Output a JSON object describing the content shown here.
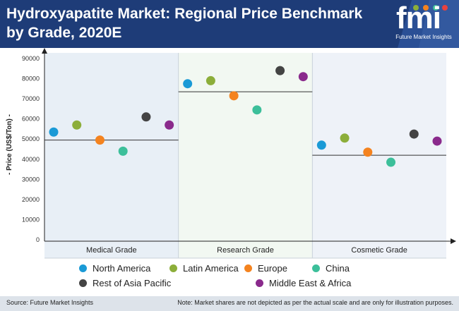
{
  "header": {
    "title": "Hydroxyapatite Market: Regional Price Benchmark by Grade, 2020E",
    "logo_text": "fmi",
    "logo_subtitle": "Future Market Insights",
    "colors": {
      "background": "#1e3c78",
      "text": "#ffffff"
    }
  },
  "chart_data": {
    "type": "scatter",
    "ylabel": "- Price (US$/Ton) -",
    "ylim": [
      0,
      90000
    ],
    "yticks": [
      0,
      10000,
      20000,
      30000,
      40000,
      50000,
      60000,
      70000,
      80000,
      90000
    ],
    "categories": [
      "Medical Grade",
      "Research Grade",
      "Cosmetic Grade"
    ],
    "band_colors": [
      "#e8eff6",
      "#f2f8f2",
      "#eef2f8"
    ],
    "averages": [
      49500,
      73500,
      42000
    ],
    "legend_position": "bottom",
    "series": [
      {
        "name": "North America",
        "color": "#1a9ad6",
        "values": [
          53500,
          77500,
          47000
        ]
      },
      {
        "name": "Latin America",
        "color": "#8cae3a",
        "values": [
          57000,
          79000,
          50500
        ]
      },
      {
        "name": "Europe",
        "color": "#f4831f",
        "values": [
          49500,
          71500,
          43500
        ]
      },
      {
        "name": "China",
        "color": "#3cbf9a",
        "values": [
          44000,
          64500,
          38500
        ]
      },
      {
        "name": "Rest of Asia Pacific",
        "color": "#444444",
        "values": [
          61000,
          84000,
          52500
        ]
      },
      {
        "name": "Middle East & Africa",
        "color": "#8a2a8c",
        "values": [
          57000,
          81000,
          49000
        ]
      }
    ]
  },
  "footer": {
    "source": "Source: Future Market Insights",
    "note": "Note: Market shares are not depicted as per the actual scale and are only for illustration purposes."
  }
}
